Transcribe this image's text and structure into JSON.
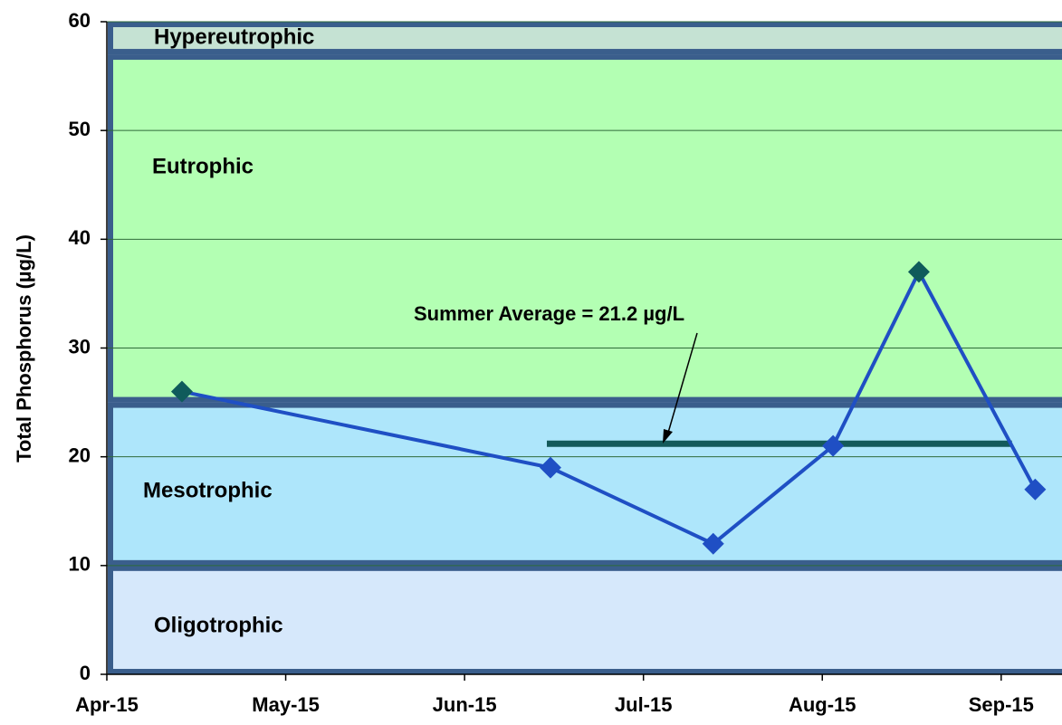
{
  "chart_data": {
    "type": "line",
    "y_label": "Total Phosphorus (µg/L)",
    "x": [
      0.42,
      2.48,
      3.39,
      4.06,
      4.54,
      5.19
    ],
    "xlim": [
      0,
      5.34
    ],
    "xticks": [
      {
        "value": 0,
        "label": "Apr-15"
      },
      {
        "value": 1,
        "label": "May-15"
      },
      {
        "value": 2,
        "label": "Jun-15"
      },
      {
        "value": 3,
        "label": "Jul-15"
      },
      {
        "value": 4,
        "label": "Aug-15"
      },
      {
        "value": 5,
        "label": "Sep-15"
      }
    ],
    "ylim": [
      0,
      60
    ],
    "yticks": [
      0,
      10,
      20,
      30,
      40,
      50,
      60
    ],
    "grid": true,
    "series": [
      {
        "values": [
          26,
          19,
          12,
          21,
          37,
          17
        ],
        "color": "#1f4fc4",
        "marker_colors": [
          "#0f5b5b",
          "#1f4fc4",
          "#1f4fc4",
          "#1f4fc4",
          "#0f5b5b",
          "#1f4fc4"
        ]
      }
    ],
    "bands": [
      {
        "label": "Oligotrophic",
        "range": [
          0,
          10
        ],
        "color": "#d6e8fb"
      },
      {
        "label": "Mesotrophic",
        "range": [
          10,
          25
        ],
        "color": "#aee6fb"
      },
      {
        "label": "Eutrophic",
        "range": [
          25,
          57
        ],
        "color": "#b3ffb3"
      },
      {
        "label": "Hypereutrophic",
        "range": [
          57,
          60
        ],
        "color": "#c5e2d3"
      }
    ],
    "reference_line": {
      "value": 21.2,
      "x": [
        2.46,
        5.06
      ],
      "color": "#145a5a"
    },
    "annotation": "Summer Average = 21.2 µg/L"
  }
}
